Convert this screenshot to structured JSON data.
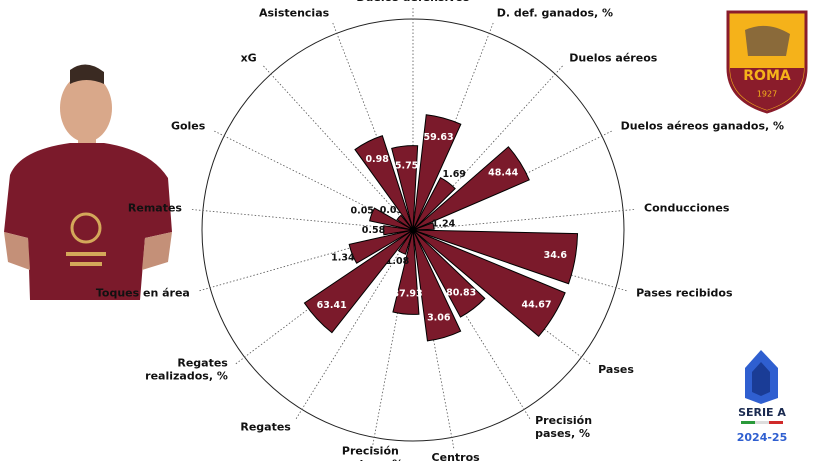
{
  "chart_data": {
    "type": "polar-bar",
    "categories": [
      "Duelos defensivos",
      "D. def. ganados, %",
      "Duelos aéreos",
      "Duelos aéreos ganados, %",
      "Conducciones",
      "Pases recibidos",
      "Pases",
      "Precisión\npases, %",
      "Centros",
      "Precisión\ncentros, %",
      "Regates",
      "Regates\nrealizados, %",
      "Toques en área",
      "Remates",
      "Goles",
      "xG",
      "Asistencias"
    ],
    "values": [
      5.75,
      59.63,
      1.69,
      48.44,
      1.24,
      34.6,
      44.67,
      80.83,
      3.06,
      37.93,
      1.08,
      63.41,
      1.34,
      0.58,
      0.05,
      0.03,
      0.98
    ],
    "percentiles": [
      40,
      55,
      28,
      60,
      10,
      78,
      78,
      47,
      53,
      40,
      12,
      62,
      31,
      14,
      21,
      9,
      47
    ],
    "rlim": [
      0,
      100
    ],
    "color": "#7b1a2b",
    "league": "SERIE A",
    "season": "2024-25",
    "club": "ROMA",
    "club_year": "1927"
  }
}
